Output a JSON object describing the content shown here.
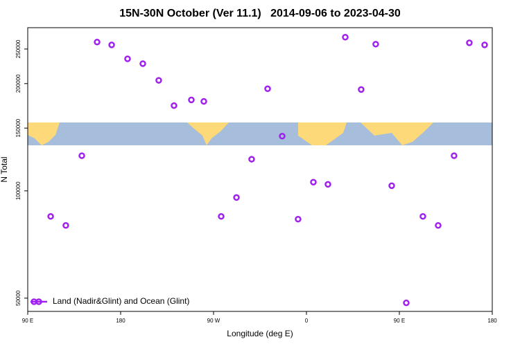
{
  "chart_data": {
    "type": "scatter",
    "title": "15N-30N October (Ver 11.1)   2014-09-06 to 2023-04-30",
    "x_label": "Longitude (deg E)",
    "y_label": "N Total",
    "x": [
      112.2,
      126.9,
      142.4,
      157.2,
      171.3,
      186.7,
      201.5,
      216.9,
      231.7,
      248.5,
      260.6,
      277.4,
      292.2,
      306.9,
      322.4,
      336.5,
      351.9,
      366.7,
      380.8,
      397.6,
      413.0,
      427.1,
      442.6,
      456.7,
      472.8,
      487.6,
      503.0,
      517.8,
      532.6
    ],
    "series": [
      {
        "name": "Land (Nadir&Glint) and Ocean (Glint)",
        "color": "#a020f0",
        "values": [
          84800,
          80000,
          125500,
          261500,
          256800,
          234700,
          227500,
          204200,
          173500,
          180000,
          178300,
          84800,
          95800,
          122700,
          193400,
          142400,
          83300,
          105800,
          104300,
          269900,
          192500,
          258000,
          103400,
          48500,
          84800,
          80000,
          125500,
          260300,
          256800
        ]
      }
    ],
    "xlim": [
      90,
      540
    ],
    "xticks": [
      {
        "value": 90,
        "label": "90 E"
      },
      180,
      {
        "value": 270,
        "label": "90 W"
      },
      {
        "value": 360,
        "label": "0"
      },
      {
        "value": 450,
        "label": "90 E"
      },
      {
        "value": 540,
        "label": "180"
      }
    ],
    "ylim": [
      45900,
      287000
    ],
    "yscale": "log",
    "yticks": [
      50000,
      100000,
      150000,
      200000,
      250000
    ],
    "legend": "lower left"
  }
}
